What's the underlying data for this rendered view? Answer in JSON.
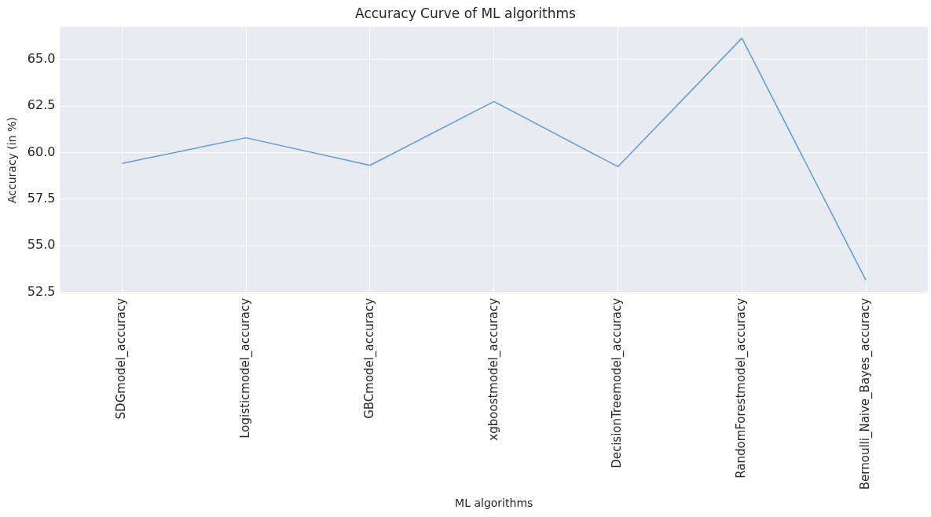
{
  "chart_data": {
    "type": "line",
    "title": "Accuracy Curve of ML algorithms",
    "xlabel": "ML algorithms",
    "ylabel": "Accuracy (in %)",
    "categories": [
      "SDGmodel_accuracy",
      "Logisticmodel_accuracy",
      "GBCmodel_accuracy",
      "xgboostmodel_accuracy",
      "DecisionTreemodel_accuracy",
      "RandomForestmodel_accuracy",
      "Bernoulli_Naive_Bayes_accuracy"
    ],
    "series": [
      {
        "color": "#5a9fd4",
        "values": [
          59.43,
          60.8,
          59.32,
          62.75,
          59.25,
          66.15,
          53.15
        ]
      }
    ],
    "ylim": [
      52.45,
      66.75
    ],
    "yticks": [
      52.5,
      {
        "value": 55,
        "label": "55.0"
      },
      57.5,
      {
        "value": 60,
        "label": "60.0"
      },
      62.5,
      {
        "value": 65,
        "label": "65.0"
      }
    ],
    "grid": true,
    "legend": false,
    "marker": "none",
    "line_style": "solid"
  }
}
